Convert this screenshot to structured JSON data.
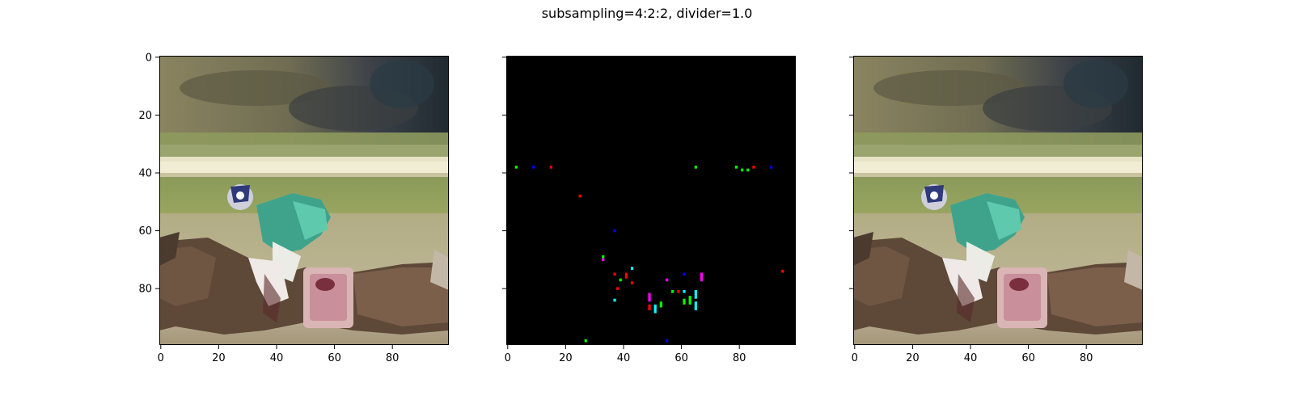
{
  "figure": {
    "title": "subsampling=4:2:2, divider=1.0"
  },
  "chart_data": [
    {
      "type": "image",
      "panel": "left",
      "description_key": "original",
      "xlim": [
        0,
        99
      ],
      "ylim": [
        99,
        0
      ],
      "xticks": [
        0,
        20,
        40,
        60,
        80
      ],
      "yticks": [
        0,
        20,
        40,
        60,
        80
      ],
      "y_tick_labels_shown": true,
      "content": "jockey-on-horse-photo"
    },
    {
      "type": "image",
      "panel": "middle",
      "description_key": "difference",
      "xlim": [
        0,
        99
      ],
      "ylim": [
        99,
        0
      ],
      "xticks": [
        0,
        20,
        40,
        60,
        80
      ],
      "yticks": [
        0,
        20,
        40,
        60,
        80
      ],
      "y_tick_labels_shown": false,
      "background": "#000000",
      "points": [
        {
          "x": 3,
          "y": 38,
          "h": 1,
          "color": "#00ff00"
        },
        {
          "x": 9,
          "y": 38,
          "h": 1,
          "color": "#0000ff"
        },
        {
          "x": 15,
          "y": 38,
          "h": 1,
          "color": "#ff0000"
        },
        {
          "x": 25,
          "y": 48,
          "h": 1,
          "color": "#ff0000"
        },
        {
          "x": 37,
          "y": 60,
          "h": 1,
          "color": "#0000ff"
        },
        {
          "x": 33,
          "y": 69,
          "h": 1,
          "color": "#00ff00"
        },
        {
          "x": 33,
          "y": 70,
          "h": 1,
          "color": "#ff00ff"
        },
        {
          "x": 43,
          "y": 73,
          "h": 1,
          "color": "#00ffff"
        },
        {
          "x": 37,
          "y": 75,
          "h": 1,
          "color": "#ff0000"
        },
        {
          "x": 41,
          "y": 75,
          "h": 2,
          "color": "#ff0000"
        },
        {
          "x": 39,
          "y": 77,
          "h": 1,
          "color": "#00ff00"
        },
        {
          "x": 43,
          "y": 78,
          "h": 1,
          "color": "#ff0000"
        },
        {
          "x": 38,
          "y": 80,
          "h": 1,
          "color": "#ff0000"
        },
        {
          "x": 37,
          "y": 84,
          "h": 1,
          "color": "#00ffff"
        },
        {
          "x": 55,
          "y": 77,
          "h": 1,
          "color": "#ff00ff"
        },
        {
          "x": 61,
          "y": 75,
          "h": 1,
          "color": "#0000ff"
        },
        {
          "x": 67,
          "y": 75,
          "h": 3,
          "color": "#ff00ff"
        },
        {
          "x": 49,
          "y": 82,
          "h": 3,
          "color": "#ff00ff"
        },
        {
          "x": 49,
          "y": 86,
          "h": 2,
          "color": "#ff0000"
        },
        {
          "x": 51,
          "y": 86,
          "h": 3,
          "color": "#00ffff"
        },
        {
          "x": 53,
          "y": 85,
          "h": 2,
          "color": "#00ff00"
        },
        {
          "x": 57,
          "y": 81,
          "h": 1,
          "color": "#00ff00"
        },
        {
          "x": 59,
          "y": 81,
          "h": 1,
          "color": "#ff0000"
        },
        {
          "x": 61,
          "y": 81,
          "h": 1,
          "color": "#00ffff"
        },
        {
          "x": 61,
          "y": 84,
          "h": 2,
          "color": "#00ff00"
        },
        {
          "x": 63,
          "y": 83,
          "h": 3,
          "color": "#00ff00"
        },
        {
          "x": 65,
          "y": 81,
          "h": 3,
          "color": "#00ffff"
        },
        {
          "x": 65,
          "y": 85,
          "h": 3,
          "color": "#00ffff"
        },
        {
          "x": 65,
          "y": 38,
          "h": 1,
          "color": "#00ff00"
        },
        {
          "x": 79,
          "y": 38,
          "h": 1,
          "color": "#00ff00"
        },
        {
          "x": 81,
          "y": 39,
          "h": 1,
          "color": "#00ff00"
        },
        {
          "x": 83,
          "y": 39,
          "h": 1,
          "color": "#00ff00"
        },
        {
          "x": 85,
          "y": 38,
          "h": 1,
          "color": "#ff0000"
        },
        {
          "x": 91,
          "y": 38,
          "h": 1,
          "color": "#0000ff"
        },
        {
          "x": 95,
          "y": 74,
          "h": 1,
          "color": "#ff0000"
        },
        {
          "x": 27,
          "y": 98,
          "h": 1,
          "color": "#00ff00"
        },
        {
          "x": 55,
          "y": 98,
          "h": 1,
          "color": "#0000ff"
        }
      ]
    },
    {
      "type": "image",
      "panel": "right",
      "description_key": "compressed",
      "xlim": [
        0,
        99
      ],
      "ylim": [
        99,
        0
      ],
      "xticks": [
        0,
        20,
        40,
        60,
        80
      ],
      "yticks": [
        0,
        20,
        40,
        60,
        80
      ],
      "y_tick_labels_shown": false,
      "content": "jockey-on-horse-photo"
    }
  ]
}
